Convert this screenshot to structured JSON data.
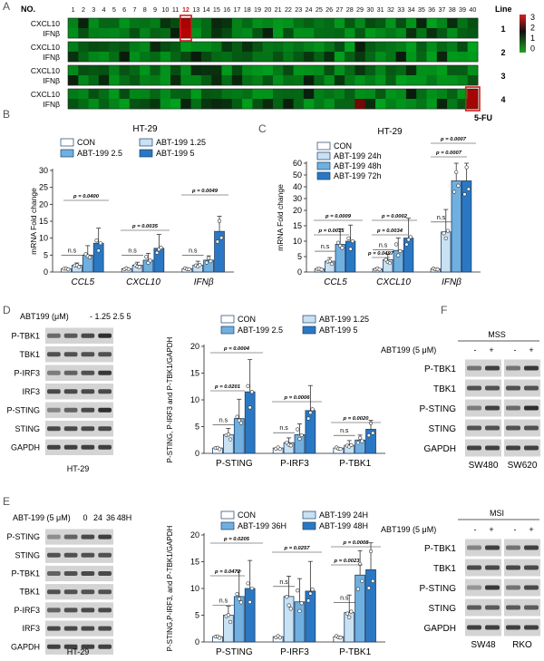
{
  "panels": {
    "A": {
      "letter": "A",
      "no_label": "NO.",
      "line_label": "Line",
      "columns": [
        "1",
        "2",
        "3",
        "4",
        "5",
        "6",
        "7",
        "8",
        "9",
        "10",
        "11",
        "12",
        "13",
        "14",
        "15",
        "16",
        "17",
        "18",
        "19",
        "20",
        "21",
        "22",
        "23",
        "24",
        "25",
        "26",
        "27",
        "28",
        "29",
        "30",
        "31",
        "32",
        "33",
        "34",
        "35",
        "36",
        "37",
        "38",
        "39",
        "40"
      ],
      "highlight_column": "12",
      "row_labels": [
        "CXCL10",
        "IFNβ"
      ],
      "line_numbers": [
        "1",
        "2",
        "3",
        "4"
      ],
      "legend_ticks": [
        "3",
        "2",
        "1",
        "0"
      ],
      "annotation": "5-FU",
      "colors": {
        "low": "#1fa51f",
        "high": "#d62020",
        "mid": "#111111",
        "highlight": "#d21c1c"
      }
    },
    "B": {
      "letter": "B",
      "title": "HT-29",
      "legend": [
        "CON",
        "ABT-199 1.25",
        "ABT-199 2.5",
        "ABT-199 5"
      ],
      "chart_data": {
        "type": "bar",
        "title": "HT-29",
        "ylabel": "mRNA Fold change",
        "ylim": [
          0,
          30
        ],
        "yticks": [
          "0",
          "5",
          "10",
          "15",
          "20",
          "25",
          "30"
        ],
        "categories": [
          "CCL5",
          "CXCL10",
          "IFNβ"
        ],
        "series": [
          {
            "name": "CON",
            "values": [
              1,
              1,
              1
            ]
          },
          {
            "name": "ABT-199 1.25",
            "values": [
              2,
              2,
              2
            ]
          },
          {
            "name": "ABT-199 2.5",
            "values": [
              5,
              3.5,
              3.5
            ]
          },
          {
            "name": "ABT-199 5",
            "values": [
              8.5,
              7,
              12
            ]
          }
        ],
        "pvalues": [
          "p = 0.0400",
          "p = 0.0035",
          "p = 0.0049"
        ],
        "ns": "n.s"
      }
    },
    "C": {
      "letter": "C",
      "title": "HT-29",
      "legend": [
        "CON",
        "ABT-199 24h",
        "ABT-199 48h",
        "ABT-199 72h"
      ],
      "chart_data": {
        "type": "bar",
        "title": "HT-29",
        "ylabel": "mRNA Fold change",
        "ylim": [
          0,
          60
        ],
        "yticks": [
          "0",
          "5",
          "10",
          "15",
          "20",
          "30",
          "40",
          "50",
          "60"
        ],
        "categories": [
          "CCL5",
          "CXCL10",
          "IFNβ"
        ],
        "series": [
          {
            "name": "CON",
            "values": [
              1,
              1,
              1
            ]
          },
          {
            "name": "ABT-199 24h",
            "values": [
              3.5,
              4,
              13
            ]
          },
          {
            "name": "ABT-199 48h",
            "values": [
              9,
              7,
              45
            ]
          },
          {
            "name": "ABT-199 72h",
            "values": [
              10,
              11,
              45
            ]
          }
        ],
        "pvalues": [
          "p = 0.0009",
          "p = 0.0015",
          "p = 0.0002",
          "p = 0.0034",
          "p = 0.0497",
          "p = 0.0007",
          "p = 0.0007"
        ],
        "ns": "n.s"
      }
    },
    "D": {
      "letter": "D",
      "blot_header": "ABT199 (μM)",
      "lanes": "- 1.25 2.5 5",
      "bands": [
        "P-TBK1",
        "TBK1",
        "P-IRF3",
        "IRF3",
        "P-STING",
        "STING",
        "GAPDH"
      ],
      "cell_line": "HT-29",
      "legend": [
        "CON",
        "ABT-199 1.25",
        "ABT-199 2.5",
        "ABT-199 5"
      ],
      "chart_data": {
        "type": "bar",
        "ylabel": "P-STING, P-IRF3 and P-TBK1/GAPDH",
        "ylim": [
          0,
          20
        ],
        "yticks": [
          "0",
          "5",
          "10",
          "15",
          "20"
        ],
        "categories": [
          "P-STING",
          "P-IRF3",
          "P-TBK1"
        ],
        "series": [
          {
            "name": "CON",
            "values": [
              1,
              1,
              1
            ]
          },
          {
            "name": "ABT-199 1.25",
            "values": [
              3.5,
              2,
              1.5
            ]
          },
          {
            "name": "ABT-199 2.5",
            "values": [
              6.5,
              3.5,
              2.5
            ]
          },
          {
            "name": "ABT-199 5",
            "values": [
              11.5,
              8,
              4.5
            ]
          }
        ],
        "pvalues": [
          "p = 0.0004",
          "p = 0.0201",
          "p = 0.0006",
          "p = 0.0020"
        ],
        "ns": "n.s"
      }
    },
    "E": {
      "letter": "E",
      "blot_header": "ABT-199 (5 μM)",
      "lanes": [
        "0",
        "24",
        "36",
        "48H"
      ],
      "bands": [
        "P-STING",
        "STING",
        "P-TBK1",
        "TBK1",
        "P-IRF3",
        "IRF3",
        "GAPDH"
      ],
      "cell_line": "HT-29",
      "legend": [
        "CON",
        "ABT-199 24H",
        "ABT-199 36H",
        "ABT-199 48H"
      ],
      "chart_data": {
        "type": "bar",
        "ylabel": "P-STING,P-IRF3, and P-TBK1/GAPDH",
        "ylim": [
          0,
          20
        ],
        "yticks": [
          "0",
          "5",
          "10",
          "15",
          "20"
        ],
        "categories": [
          "P-STING",
          "P-IRF3",
          "P-TBK1"
        ],
        "series": [
          {
            "name": "CON",
            "values": [
              1,
              1,
              1
            ]
          },
          {
            "name": "ABT-199 24H",
            "values": [
              5,
              8.5,
              5.5
            ]
          },
          {
            "name": "ABT-199 36H",
            "values": [
              8.5,
              7.5,
              12.5
            ]
          },
          {
            "name": "ABT-199 48H",
            "values": [
              10,
              9.5,
              13.5
            ]
          }
        ],
        "pvalues": [
          "p = 0.0205",
          "p = 0.0472",
          "p = 0.0257",
          "p = 0.0008",
          "p = 0.0023"
        ],
        "ns": "n.s"
      }
    },
    "F_MSS": {
      "letter": "F",
      "group": "MSS",
      "treatment": "ABT199 (5 μM)",
      "signs": [
        "-",
        "+",
        "-",
        "+"
      ],
      "bands": [
        "P-TBK1",
        "TBK1",
        "P-STING",
        "STING",
        "GAPDH"
      ],
      "cell_lines": [
        "SW480",
        "SW620"
      ]
    },
    "F_MSI": {
      "group": "MSI",
      "treatment": "ABT199 (5 μM)",
      "signs": [
        "-",
        "+",
        "-",
        "+"
      ],
      "bands": [
        "P-TBK1",
        "TBK1",
        "P-STING",
        "STING",
        "GAPDH"
      ],
      "cell_lines": [
        "SW48",
        "RKO"
      ]
    }
  },
  "colors": {
    "bar": [
      "#ffffff",
      "#c8e1f3",
      "#6fb0e0",
      "#2a78c4"
    ],
    "bar_stroke": "#1d3f66",
    "blot_bg": "#d4d4d4",
    "band": "#262626"
  }
}
